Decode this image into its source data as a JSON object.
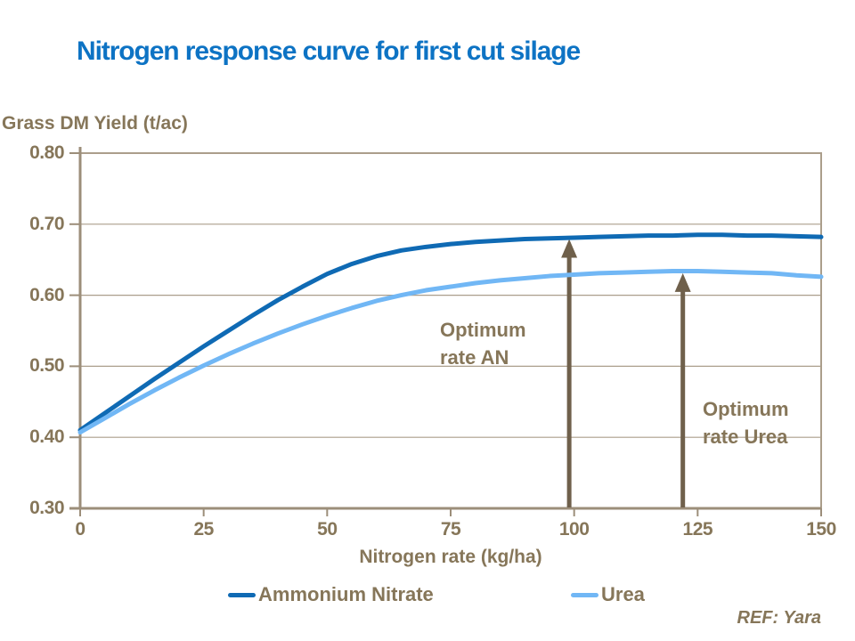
{
  "title": "Nitrogen response curve for first cut silage",
  "ref_label": "REF: Yara",
  "colors": {
    "title_blue": "#0d73c4",
    "text_brown": "#867659",
    "grid_taupe": "#ab9e8b",
    "axis_taupe": "#9c8e7a",
    "arrow_brown": "#6f604b",
    "ammonium_nitrate_blue": "#0f6ab4",
    "urea_blue": "#71b7f5"
  },
  "chart_data": {
    "type": "line",
    "title": "Nitrogen response curve for first cut silage",
    "xlabel": "Nitrogen rate (kg/ha)",
    "ylabel": "Grass DM Yield (t/ac)",
    "xlim": [
      0,
      150
    ],
    "ylim": [
      0.3,
      0.8
    ],
    "xticks": [
      "0",
      "25",
      "50",
      "75",
      "100",
      "125",
      "150"
    ],
    "yticks": [
      "0.30",
      "0.40",
      "0.50",
      "0.60",
      "0.70",
      "0.80"
    ],
    "grid": true,
    "legend_position": "bottom",
    "x": [
      0,
      5,
      10,
      15,
      20,
      25,
      30,
      35,
      40,
      45,
      50,
      55,
      60,
      65,
      70,
      75,
      80,
      85,
      90,
      95,
      100,
      105,
      110,
      115,
      120,
      125,
      130,
      135,
      140,
      145,
      150
    ],
    "series": [
      {
        "name": "Ammonium Nitrate",
        "color": "#0f6ab4",
        "values": [
          0.41,
          0.434,
          0.458,
          0.482,
          0.505,
          0.528,
          0.55,
          0.572,
          0.593,
          0.612,
          0.63,
          0.644,
          0.655,
          0.663,
          0.668,
          0.672,
          0.675,
          0.677,
          0.679,
          0.68,
          0.681,
          0.682,
          0.683,
          0.684,
          0.684,
          0.685,
          0.685,
          0.684,
          0.684,
          0.683,
          0.682
        ]
      },
      {
        "name": "Urea",
        "color": "#71b7f5",
        "values": [
          0.407,
          0.427,
          0.447,
          0.466,
          0.484,
          0.501,
          0.517,
          0.532,
          0.546,
          0.559,
          0.571,
          0.582,
          0.592,
          0.6,
          0.607,
          0.612,
          0.617,
          0.621,
          0.624,
          0.627,
          0.629,
          0.631,
          0.632,
          0.633,
          0.634,
          0.634,
          0.633,
          0.632,
          0.631,
          0.628,
          0.626
        ]
      }
    ],
    "annotations": [
      {
        "lines": [
          "Optimum",
          "rate AN"
        ],
        "arrow_x_kg": 99,
        "arrow_tip_value": 0.679
      },
      {
        "lines": [
          "Optimum",
          "rate Urea"
        ],
        "arrow_x_kg": 122,
        "arrow_tip_value": 0.631
      }
    ]
  },
  "legend": {
    "items": [
      {
        "label": "Ammonium Nitrate"
      },
      {
        "label": "Urea"
      }
    ]
  }
}
